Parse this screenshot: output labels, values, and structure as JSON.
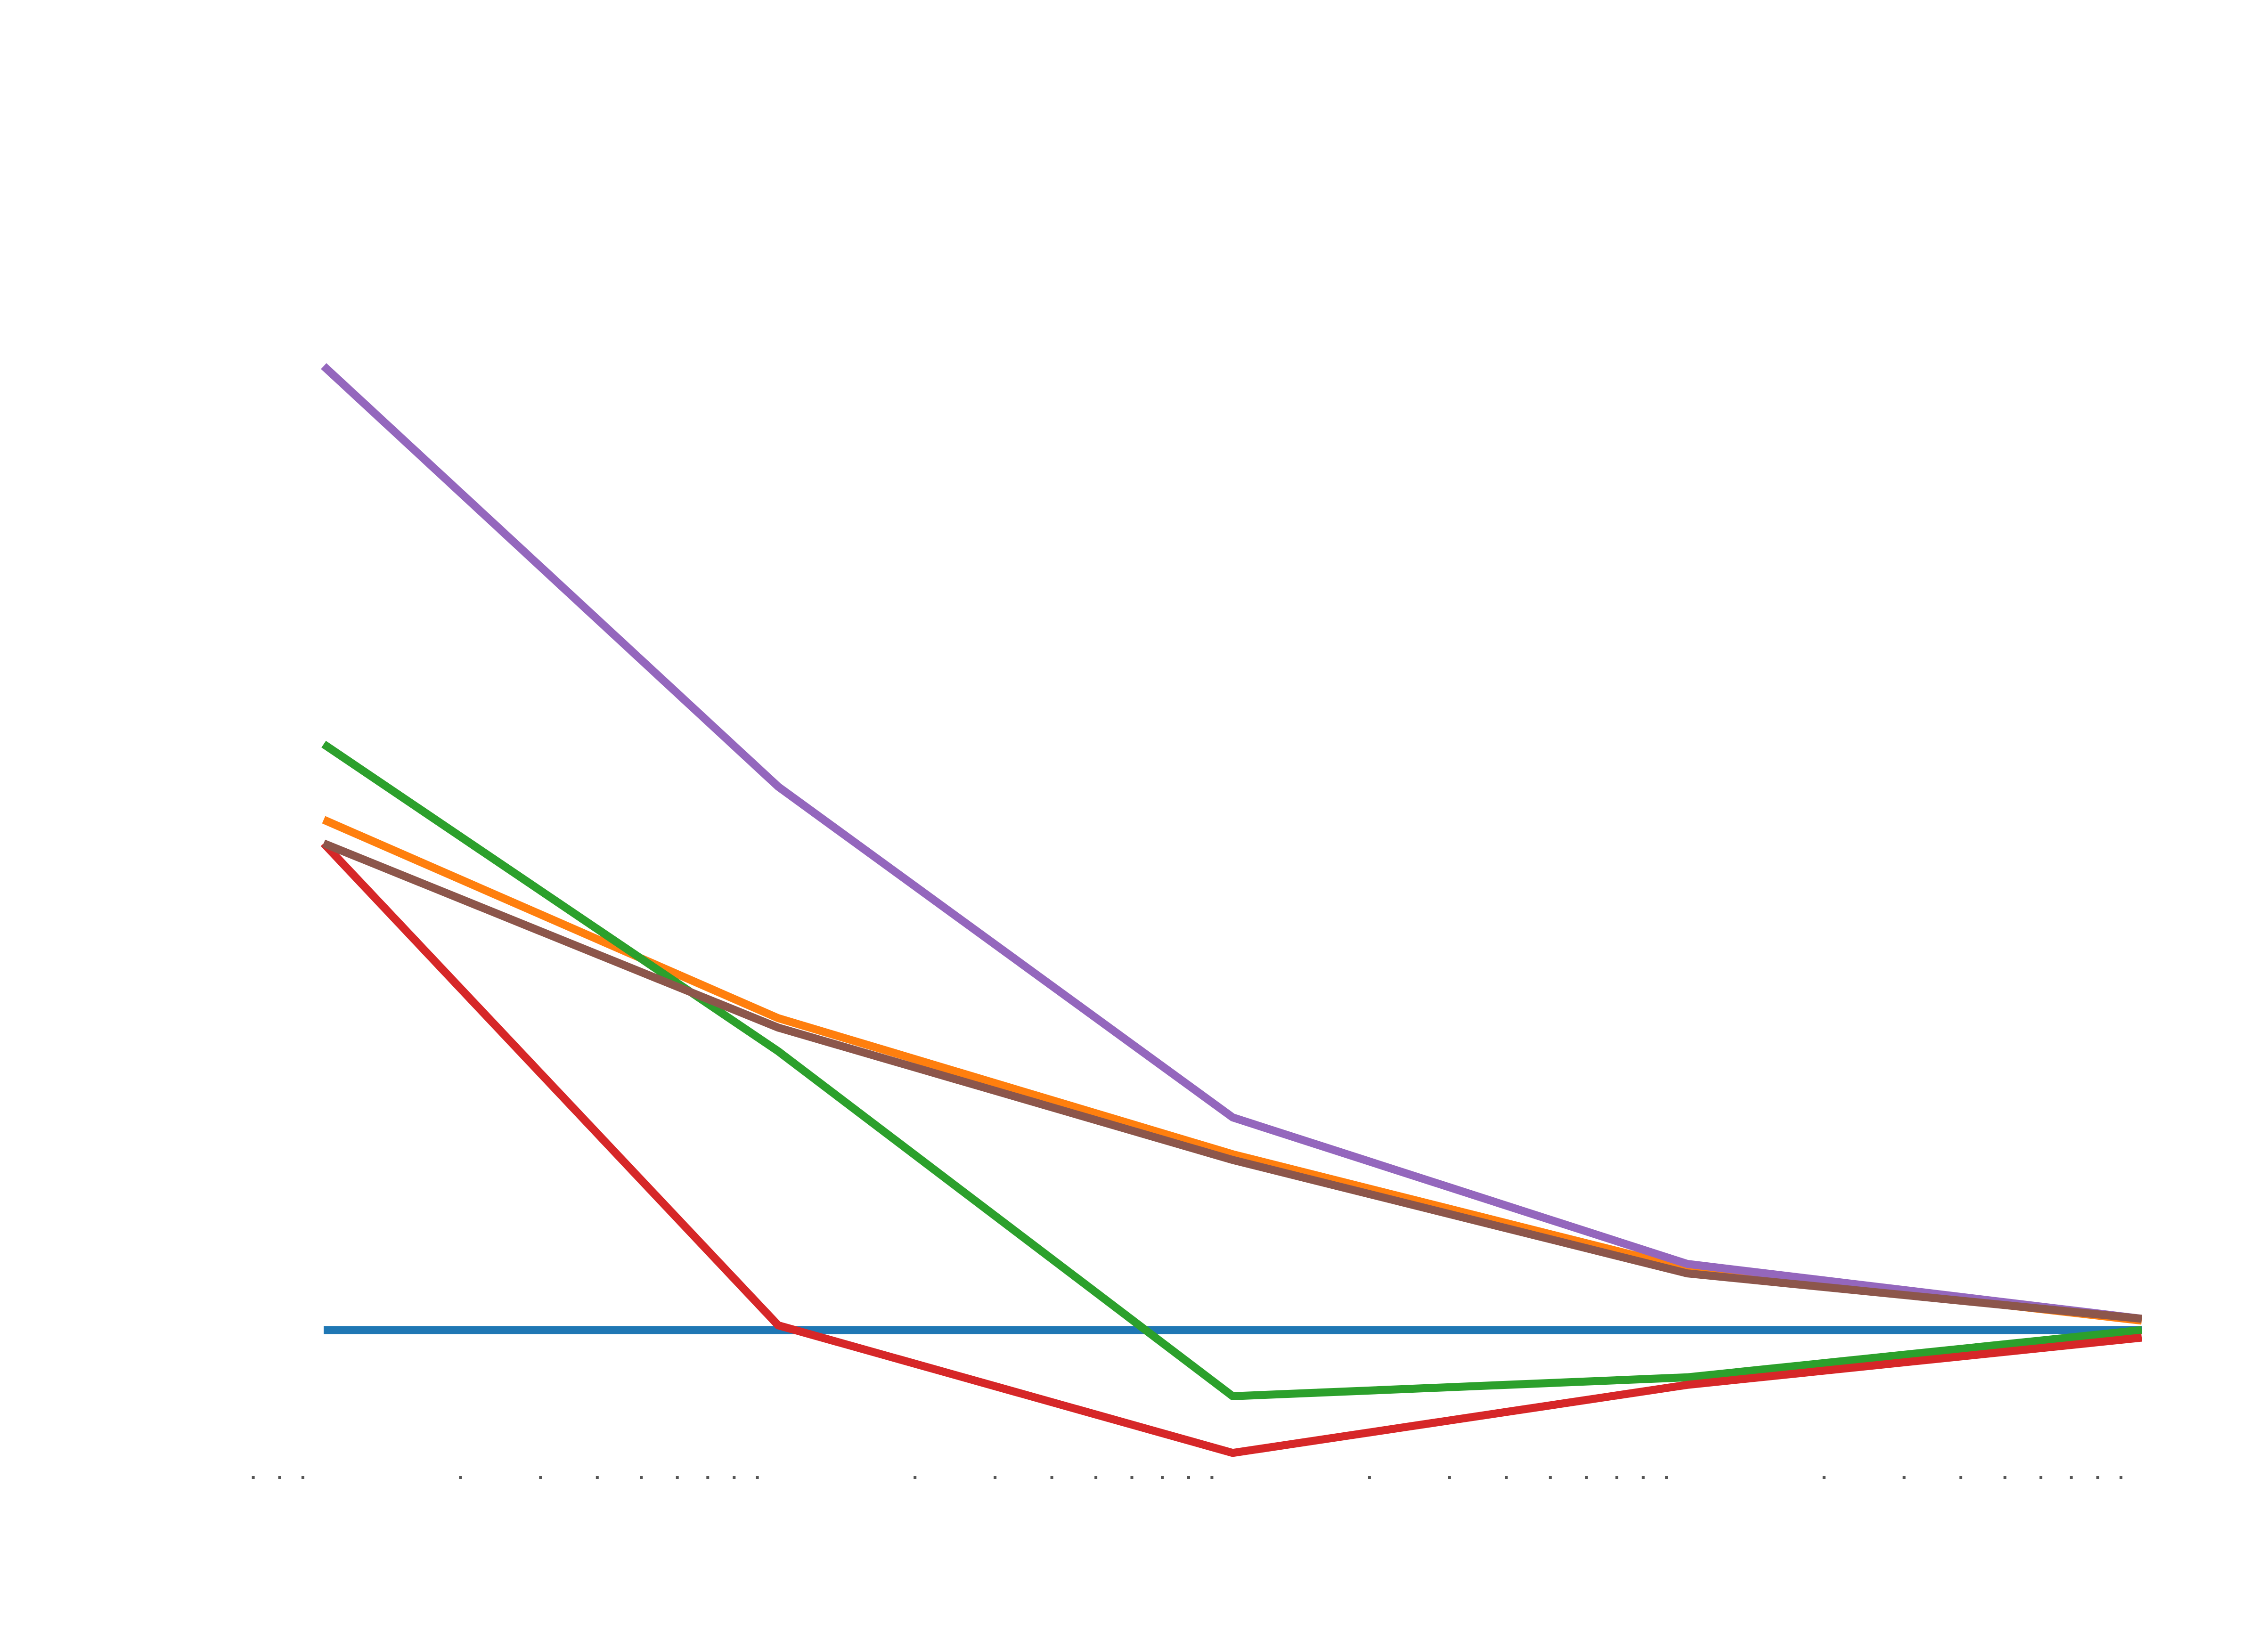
{
  "chart_data": {
    "type": "line",
    "title": "",
    "xlabel": "",
    "ylabel": "",
    "x_scale": "log",
    "x": [
      1,
      10,
      100,
      1000,
      10000
    ],
    "ylim": [
      -0.16,
      1.36
    ],
    "grid": false,
    "legend": "none",
    "series": [
      {
        "color": "#1f77b4",
        "values": [
          0.0,
          0.0,
          0.0,
          0.0,
          0.0
        ]
      },
      {
        "color": "#ff7f0e",
        "values": [
          0.54,
          0.33,
          0.186,
          0.065,
          0.01
        ]
      },
      {
        "color": "#2ca02c",
        "values": [
          0.62,
          0.295,
          -0.07,
          -0.05,
          0.0
        ]
      },
      {
        "color": "#d62728",
        "values": [
          0.515,
          0.005,
          -0.13,
          -0.058,
          -0.008
        ]
      },
      {
        "color": "#9467bd",
        "values": [
          1.02,
          0.575,
          0.225,
          0.07,
          0.012
        ]
      },
      {
        "color": "#8c564b",
        "values": [
          0.515,
          0.32,
          0.18,
          0.06,
          0.012
        ]
      }
    ]
  }
}
